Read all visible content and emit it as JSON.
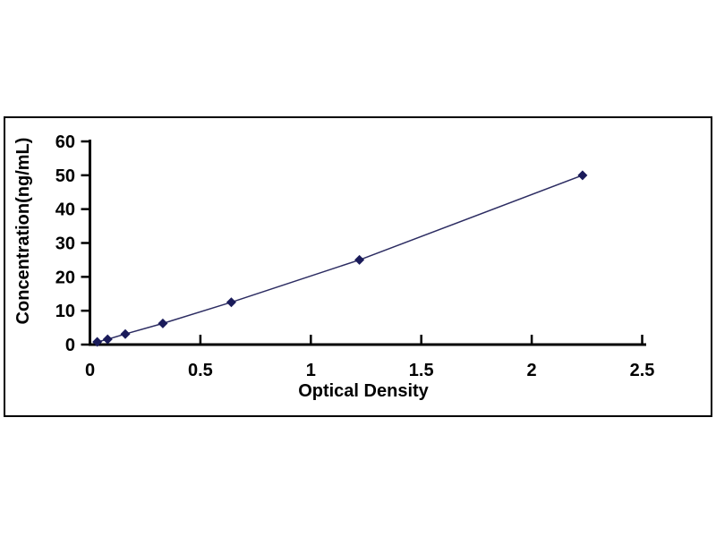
{
  "figure": {
    "background_color": "#ffffff",
    "frame_border_color": "#000000",
    "axis_color": "#000000"
  },
  "chart_data": {
    "type": "line",
    "title": "",
    "xlabel": "Optical Density",
    "ylabel": "Concentration(ng/mL)",
    "x": [
      0.033,
      0.08,
      0.16,
      0.33,
      0.64,
      1.22,
      2.23
    ],
    "y": [
      0.78,
      1.56,
      3.12,
      6.25,
      12.5,
      25,
      50
    ],
    "xlim": [
      0,
      2.5
    ],
    "ylim": [
      0,
      60
    ],
    "xticks": [
      0,
      0.5,
      1,
      1.5,
      2,
      2.5
    ],
    "yticks": [
      0,
      10,
      20,
      30,
      40,
      50,
      60
    ],
    "grid": false,
    "legend": "none",
    "marker": "diamond",
    "colors": {
      "line": "#2c2c62",
      "marker": "#1a1b5a",
      "tick_label": "#000000"
    }
  }
}
